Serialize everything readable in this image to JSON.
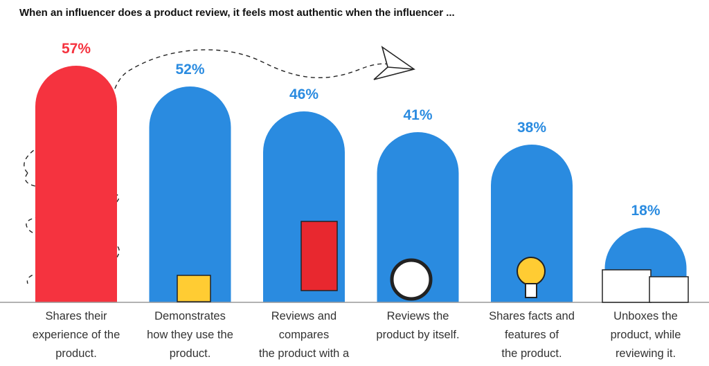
{
  "chart_data": {
    "type": "bar",
    "title": "When an influencer does a product review, it feels most authentic when the influencer ...",
    "categories": [
      "Shares their\nexperience of the\nproduct.",
      "Demonstrates\nhow they use the\nproduct.",
      "Reviews and compares\nthe product with a\nsimilar product.",
      "Reviews the\nproduct by itself.",
      "Shares facts and\nfeatures of\nthe product.",
      "Unboxes the\nproduct, while\nreviewing it."
    ],
    "values": [
      57,
      52,
      46,
      41,
      38,
      18
    ],
    "value_labels": [
      "57%",
      "52%",
      "46%",
      "41%",
      "38%",
      "18%"
    ],
    "colors": [
      "#f5333f",
      "#2a8be0",
      "#2a8be0",
      "#2a8be0",
      "#2a8be0",
      "#2a8be0"
    ]
  }
}
